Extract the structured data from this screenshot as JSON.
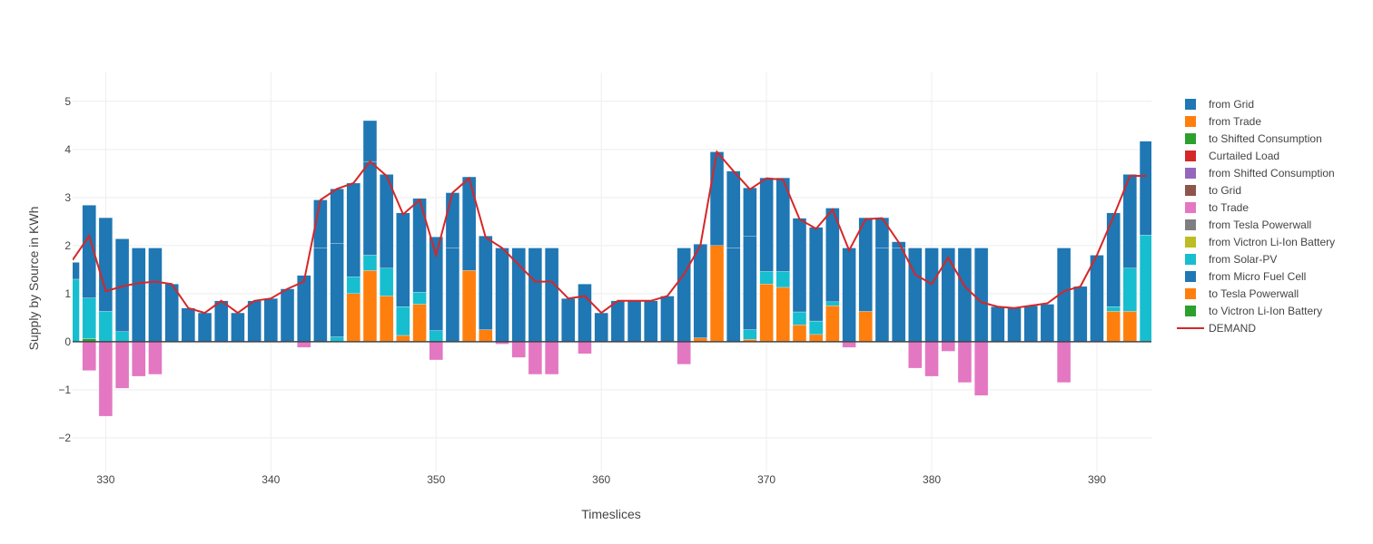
{
  "chart_data": {
    "type": "bar",
    "barmode": "relative",
    "xlabel": "Timeslices",
    "ylabel": "Supply by Source in KWh",
    "xlim": [
      328,
      393.3
    ],
    "ylim": [
      -2.7,
      5.6
    ],
    "xticks": [
      330,
      340,
      350,
      360,
      370,
      380,
      390
    ],
    "yticks": [
      -2,
      -1,
      0,
      1,
      2,
      3,
      4,
      5
    ],
    "ytick_labels": [
      "−2",
      "−1",
      "0",
      "1",
      "2",
      "3",
      "4",
      "5"
    ],
    "grid": true,
    "legend_position": "right",
    "x": [
      328,
      329,
      330,
      331,
      332,
      333,
      334,
      335,
      336,
      337,
      338,
      339,
      340,
      341,
      342,
      343,
      344,
      345,
      346,
      347,
      348,
      349,
      350,
      351,
      352,
      353,
      354,
      355,
      356,
      357,
      358,
      359,
      360,
      361,
      362,
      363,
      364,
      365,
      366,
      367,
      368,
      369,
      370,
      371,
      372,
      373,
      374,
      375,
      376,
      377,
      378,
      379,
      380,
      381,
      382,
      383,
      384,
      385,
      386,
      387,
      388,
      389,
      390,
      391,
      392,
      393
    ],
    "legend": [
      {
        "name": "from Grid",
        "color": "#1f77b4",
        "kind": "bar"
      },
      {
        "name": "from Trade",
        "color": "#ff7f0e",
        "kind": "bar"
      },
      {
        "name": "to Shifted Consumption",
        "color": "#2ca02c",
        "kind": "bar"
      },
      {
        "name": "Curtailed Load",
        "color": "#d62728",
        "kind": "bar"
      },
      {
        "name": "from Shifted Consumption",
        "color": "#9467bd",
        "kind": "bar"
      },
      {
        "name": "to Grid",
        "color": "#8c564b",
        "kind": "bar"
      },
      {
        "name": "to Trade",
        "color": "#e377c2",
        "kind": "bar"
      },
      {
        "name": "from Tesla Powerwall",
        "color": "#7f7f7f",
        "kind": "bar"
      },
      {
        "name": "from Victron Li-Ion Battery",
        "color": "#bcbd22",
        "kind": "bar"
      },
      {
        "name": "from Solar-PV",
        "color": "#17becf",
        "kind": "bar"
      },
      {
        "name": "from Micro Fuel Cell",
        "color": "#1f77b4",
        "kind": "bar"
      },
      {
        "name": "to Tesla Powerwall",
        "color": "#ff7f0e",
        "kind": "bar"
      },
      {
        "name": "to Victron Li-Ion Battery",
        "color": "#2ca02c",
        "kind": "bar"
      },
      {
        "name": "DEMAND",
        "color": "#d62728",
        "kind": "line"
      }
    ],
    "series": [
      {
        "key": "to_shifted",
        "color": "#2ca02c",
        "values": [
          0,
          0.06,
          0,
          0,
          0,
          0,
          0,
          0,
          0,
          0,
          0,
          0,
          0,
          0,
          0,
          0,
          0,
          0,
          0,
          0,
          0,
          0,
          0,
          0,
          0,
          0,
          0,
          0,
          0,
          0,
          0,
          0,
          0,
          0,
          0,
          0,
          0,
          0,
          0,
          0,
          0,
          0,
          0,
          0,
          0,
          0,
          0,
          0,
          0,
          0,
          0,
          0,
          0,
          0,
          0,
          0,
          0,
          0,
          0,
          0,
          0,
          0,
          0,
          0,
          0,
          0
        ]
      },
      {
        "key": "to_tesla",
        "color": "#ff7f0e",
        "values": [
          0,
          0,
          0,
          0,
          0,
          0,
          0,
          0,
          0,
          0,
          0,
          0,
          0,
          0,
          0,
          0,
          0,
          1.0,
          1.48,
          0.95,
          0.13,
          0.78,
          0,
          0,
          1.48,
          0.25,
          0,
          0,
          0,
          0,
          0,
          0,
          0,
          0,
          0,
          0,
          0,
          0,
          0.08,
          2.0,
          0,
          0.05,
          1.2,
          1.13,
          0.35,
          0.15,
          0.75,
          0,
          0.63,
          0,
          0,
          0,
          0,
          0,
          0,
          0,
          0,
          0,
          0,
          0,
          0,
          0,
          0,
          0.63,
          0.63,
          0
        ]
      },
      {
        "key": "from_solar",
        "color": "#17becf",
        "values": [
          1.3,
          0.85,
          0.63,
          0.21,
          0,
          0,
          0,
          0,
          0,
          0,
          0,
          0,
          0,
          0,
          0,
          0,
          0.1,
          0.35,
          0.32,
          0.58,
          0.6,
          0.25,
          0.23,
          0,
          0,
          0,
          0,
          0,
          0,
          0,
          0,
          0,
          0,
          0,
          0,
          0,
          0,
          0,
          0,
          0,
          0,
          0.2,
          0.26,
          0.33,
          0.27,
          0.28,
          0.08,
          0,
          0,
          0,
          0,
          0,
          0,
          0,
          0,
          0,
          0,
          0,
          0,
          0,
          0,
          0,
          0,
          0.1,
          0.9,
          2.22
        ]
      },
      {
        "key": "from_grid",
        "color": "#1f77b4",
        "values": [
          0.35,
          1.93,
          1.95,
          1.93,
          1.95,
          1.95,
          1.2,
          0.7,
          0.6,
          0.85,
          0.6,
          0.85,
          0.9,
          1.1,
          1.38,
          1.95,
          1.95,
          1.95,
          1.95,
          1.95,
          1.95,
          1.95,
          1.95,
          1.95,
          1.95,
          1.95,
          1.95,
          1.95,
          1.95,
          1.95,
          0.9,
          1.2,
          0.6,
          0.85,
          0.85,
          0.85,
          0.95,
          1.95,
          1.95,
          1.95,
          1.95,
          1.95,
          1.95,
          1.95,
          1.95,
          1.95,
          1.95,
          1.95,
          1.95,
          1.95,
          1.95,
          1.95,
          1.95,
          1.95,
          1.95,
          1.95,
          0.73,
          0.7,
          0.75,
          0.78,
          1.95,
          1.15,
          1.8,
          1.95,
          1.95,
          1.95
        ]
      },
      {
        "key": "from_fuel_cell",
        "color": "#1f77b4",
        "values": [
          0,
          0,
          0,
          0,
          0,
          0,
          0,
          0,
          0,
          0,
          0,
          0,
          0,
          0,
          0,
          1.0,
          1.13,
          0,
          0.85,
          0,
          0,
          0,
          0,
          1.15,
          0,
          0,
          0,
          0,
          0,
          0,
          0,
          0,
          0,
          0,
          0,
          0,
          0,
          0,
          0,
          0,
          1.6,
          1.0,
          0,
          0,
          0,
          0,
          0,
          0,
          0,
          0.63,
          0.13,
          0,
          0,
          0,
          0,
          0,
          0,
          0,
          0,
          0,
          0,
          0,
          0,
          0,
          0,
          0
        ]
      },
      {
        "key": "to_trade",
        "color": "#e377c2",
        "values": [
          0,
          -0.6,
          -1.55,
          -0.97,
          -0.72,
          -0.68,
          0,
          0,
          0,
          0,
          0,
          0,
          0,
          0,
          -0.12,
          0,
          0,
          0,
          0,
          0,
          0,
          0,
          -0.38,
          0,
          0,
          0,
          -0.05,
          -0.33,
          -0.68,
          -0.68,
          0,
          -0.25,
          0,
          0,
          0,
          0,
          0,
          -0.47,
          0,
          0,
          0,
          0,
          0,
          0,
          0,
          0,
          0,
          -0.12,
          0,
          0,
          0,
          -0.55,
          -0.72,
          -0.2,
          -0.85,
          -1.12,
          0,
          0,
          0,
          0,
          -0.85,
          0,
          0,
          0,
          0,
          0
        ]
      }
    ],
    "demand": [
      1.7,
      2.2,
      1.05,
      1.15,
      1.22,
      1.25,
      1.2,
      0.7,
      0.6,
      0.85,
      0.6,
      0.85,
      0.9,
      1.1,
      1.25,
      2.95,
      3.18,
      3.3,
      3.75,
      3.45,
      2.65,
      2.95,
      1.8,
      3.1,
      3.4,
      2.17,
      1.95,
      1.6,
      1.25,
      1.25,
      0.9,
      0.95,
      0.6,
      0.85,
      0.85,
      0.85,
      0.95,
      1.4,
      2.0,
      3.95,
      3.55,
      3.17,
      3.4,
      3.37,
      2.55,
      2.35,
      2.75,
      1.9,
      2.55,
      2.57,
      2.07,
      1.4,
      1.2,
      1.75,
      1.15,
      0.82,
      0.73,
      0.7,
      0.75,
      0.8,
      1.05,
      1.15,
      1.8,
      2.6,
      3.45,
      3.45
    ]
  }
}
